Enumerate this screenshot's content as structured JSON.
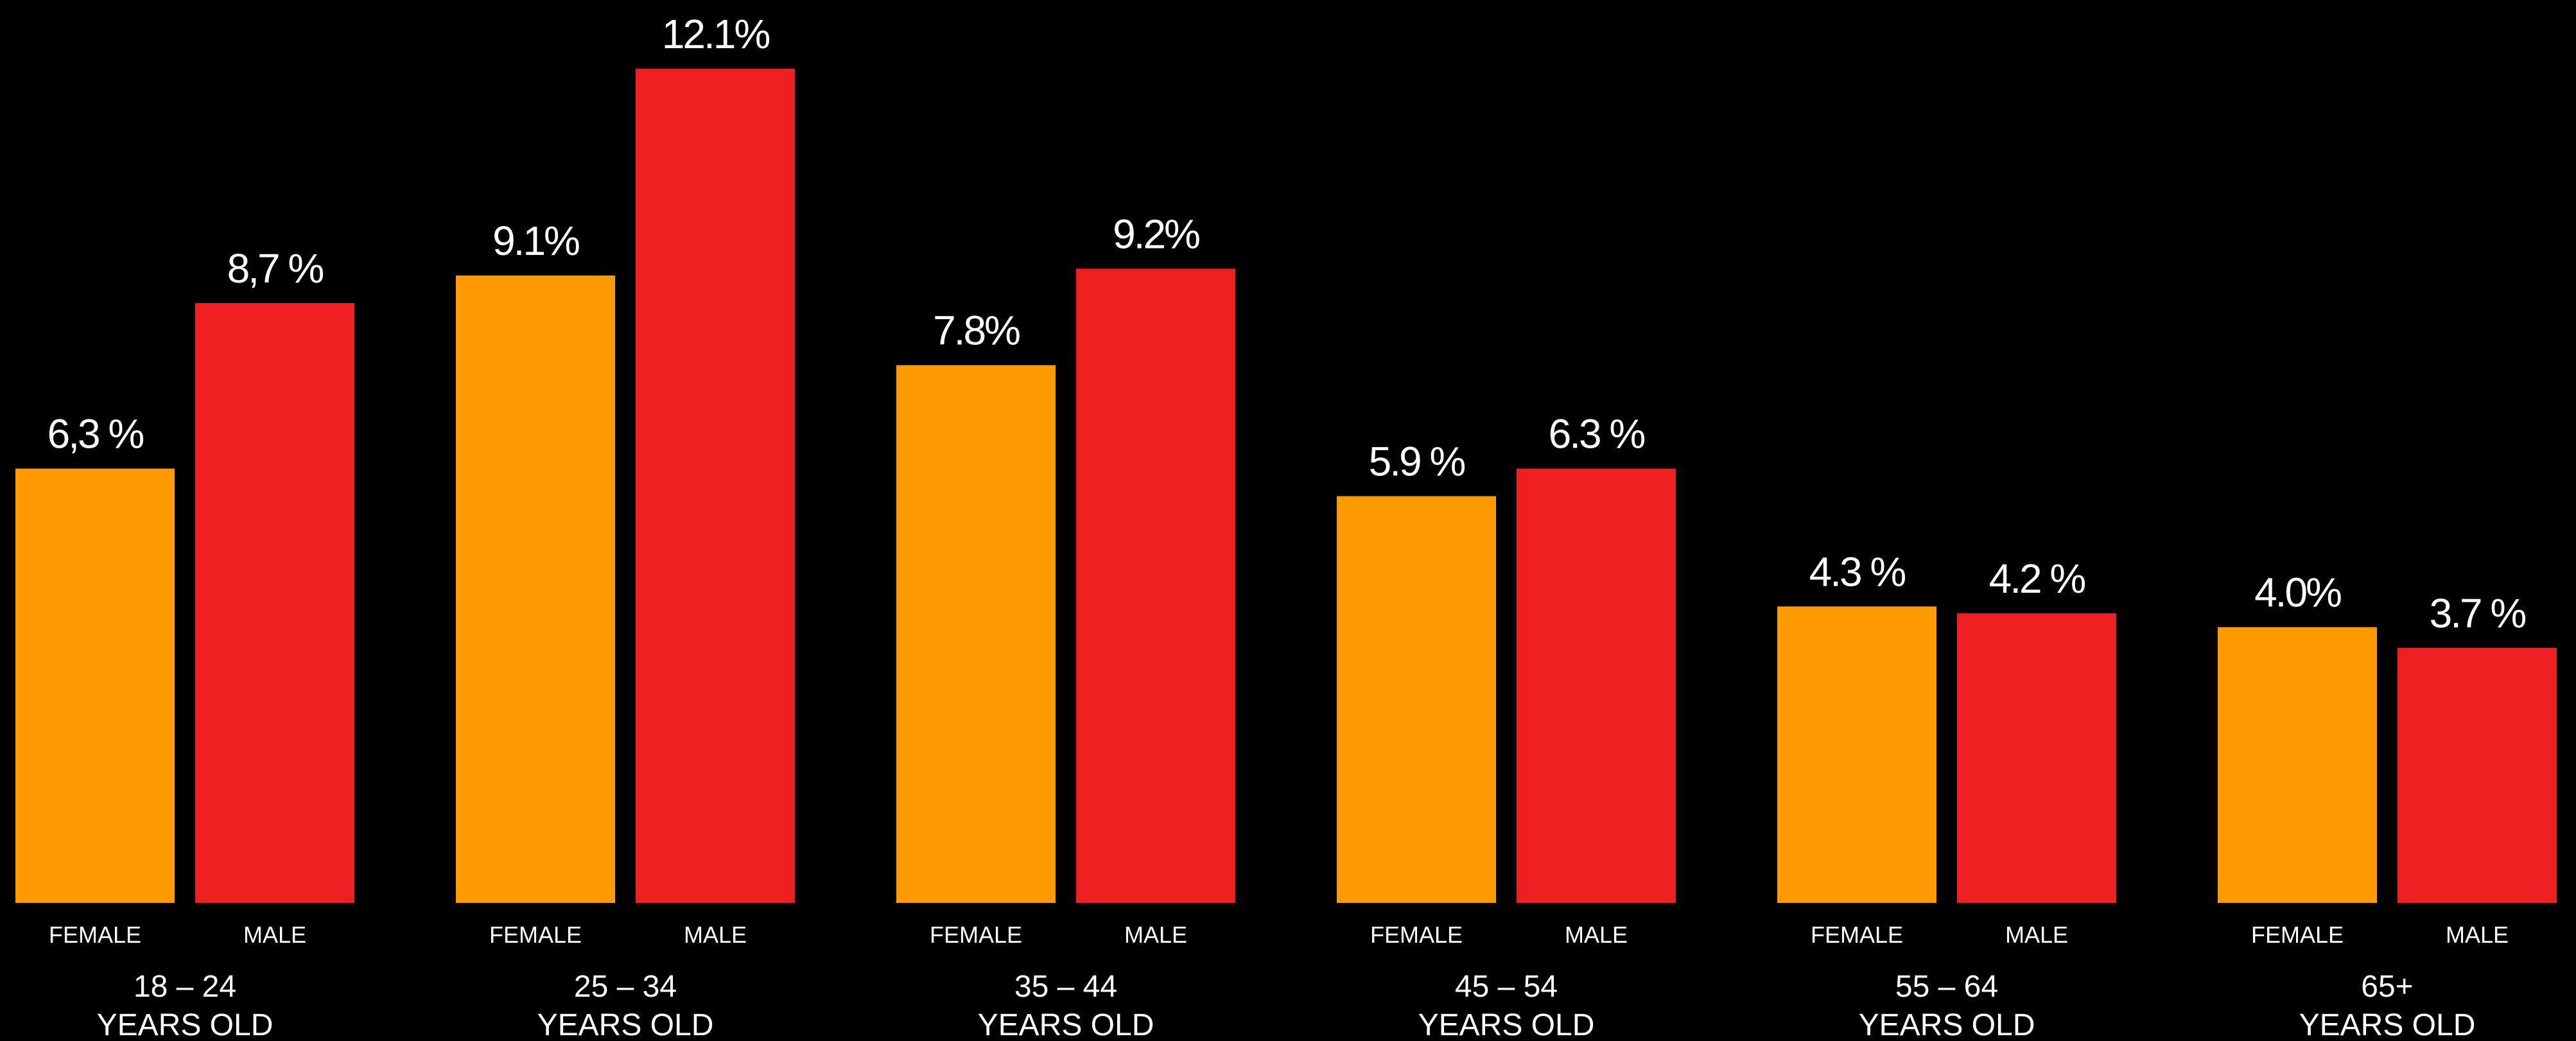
{
  "chart_data": {
    "type": "bar",
    "ylim": [
      0,
      13
    ],
    "grid": false,
    "legend": "none",
    "categories": [
      {
        "range": "18 – 24",
        "unit": "YEARS OLD"
      },
      {
        "range": "25 – 34",
        "unit": "YEARS OLD"
      },
      {
        "range": "35 – 44",
        "unit": "YEARS OLD"
      },
      {
        "range": "45 – 54",
        "unit": "YEARS OLD"
      },
      {
        "range": "55 – 64",
        "unit": "YEARS OLD"
      },
      {
        "range": "65+",
        "unit": "YEARS OLD"
      }
    ],
    "series": [
      {
        "name": "FEMALE",
        "color": "#ff9a00",
        "values": [
          6.3,
          9.1,
          7.8,
          5.9,
          4.3,
          4.0
        ],
        "labels": [
          "6,3 %",
          "9.1%",
          "7.8%",
          "5.9 %",
          "4.3 %",
          "4.0%"
        ]
      },
      {
        "name": "MALE",
        "color": "#ee1f21",
        "values": [
          8.7,
          12.1,
          9.2,
          6.3,
          4.2,
          3.7
        ],
        "labels": [
          "8,7 %",
          "12.1%",
          "9.2%",
          "6.3 %",
          "4.2 %",
          "3.7 %"
        ]
      }
    ]
  }
}
